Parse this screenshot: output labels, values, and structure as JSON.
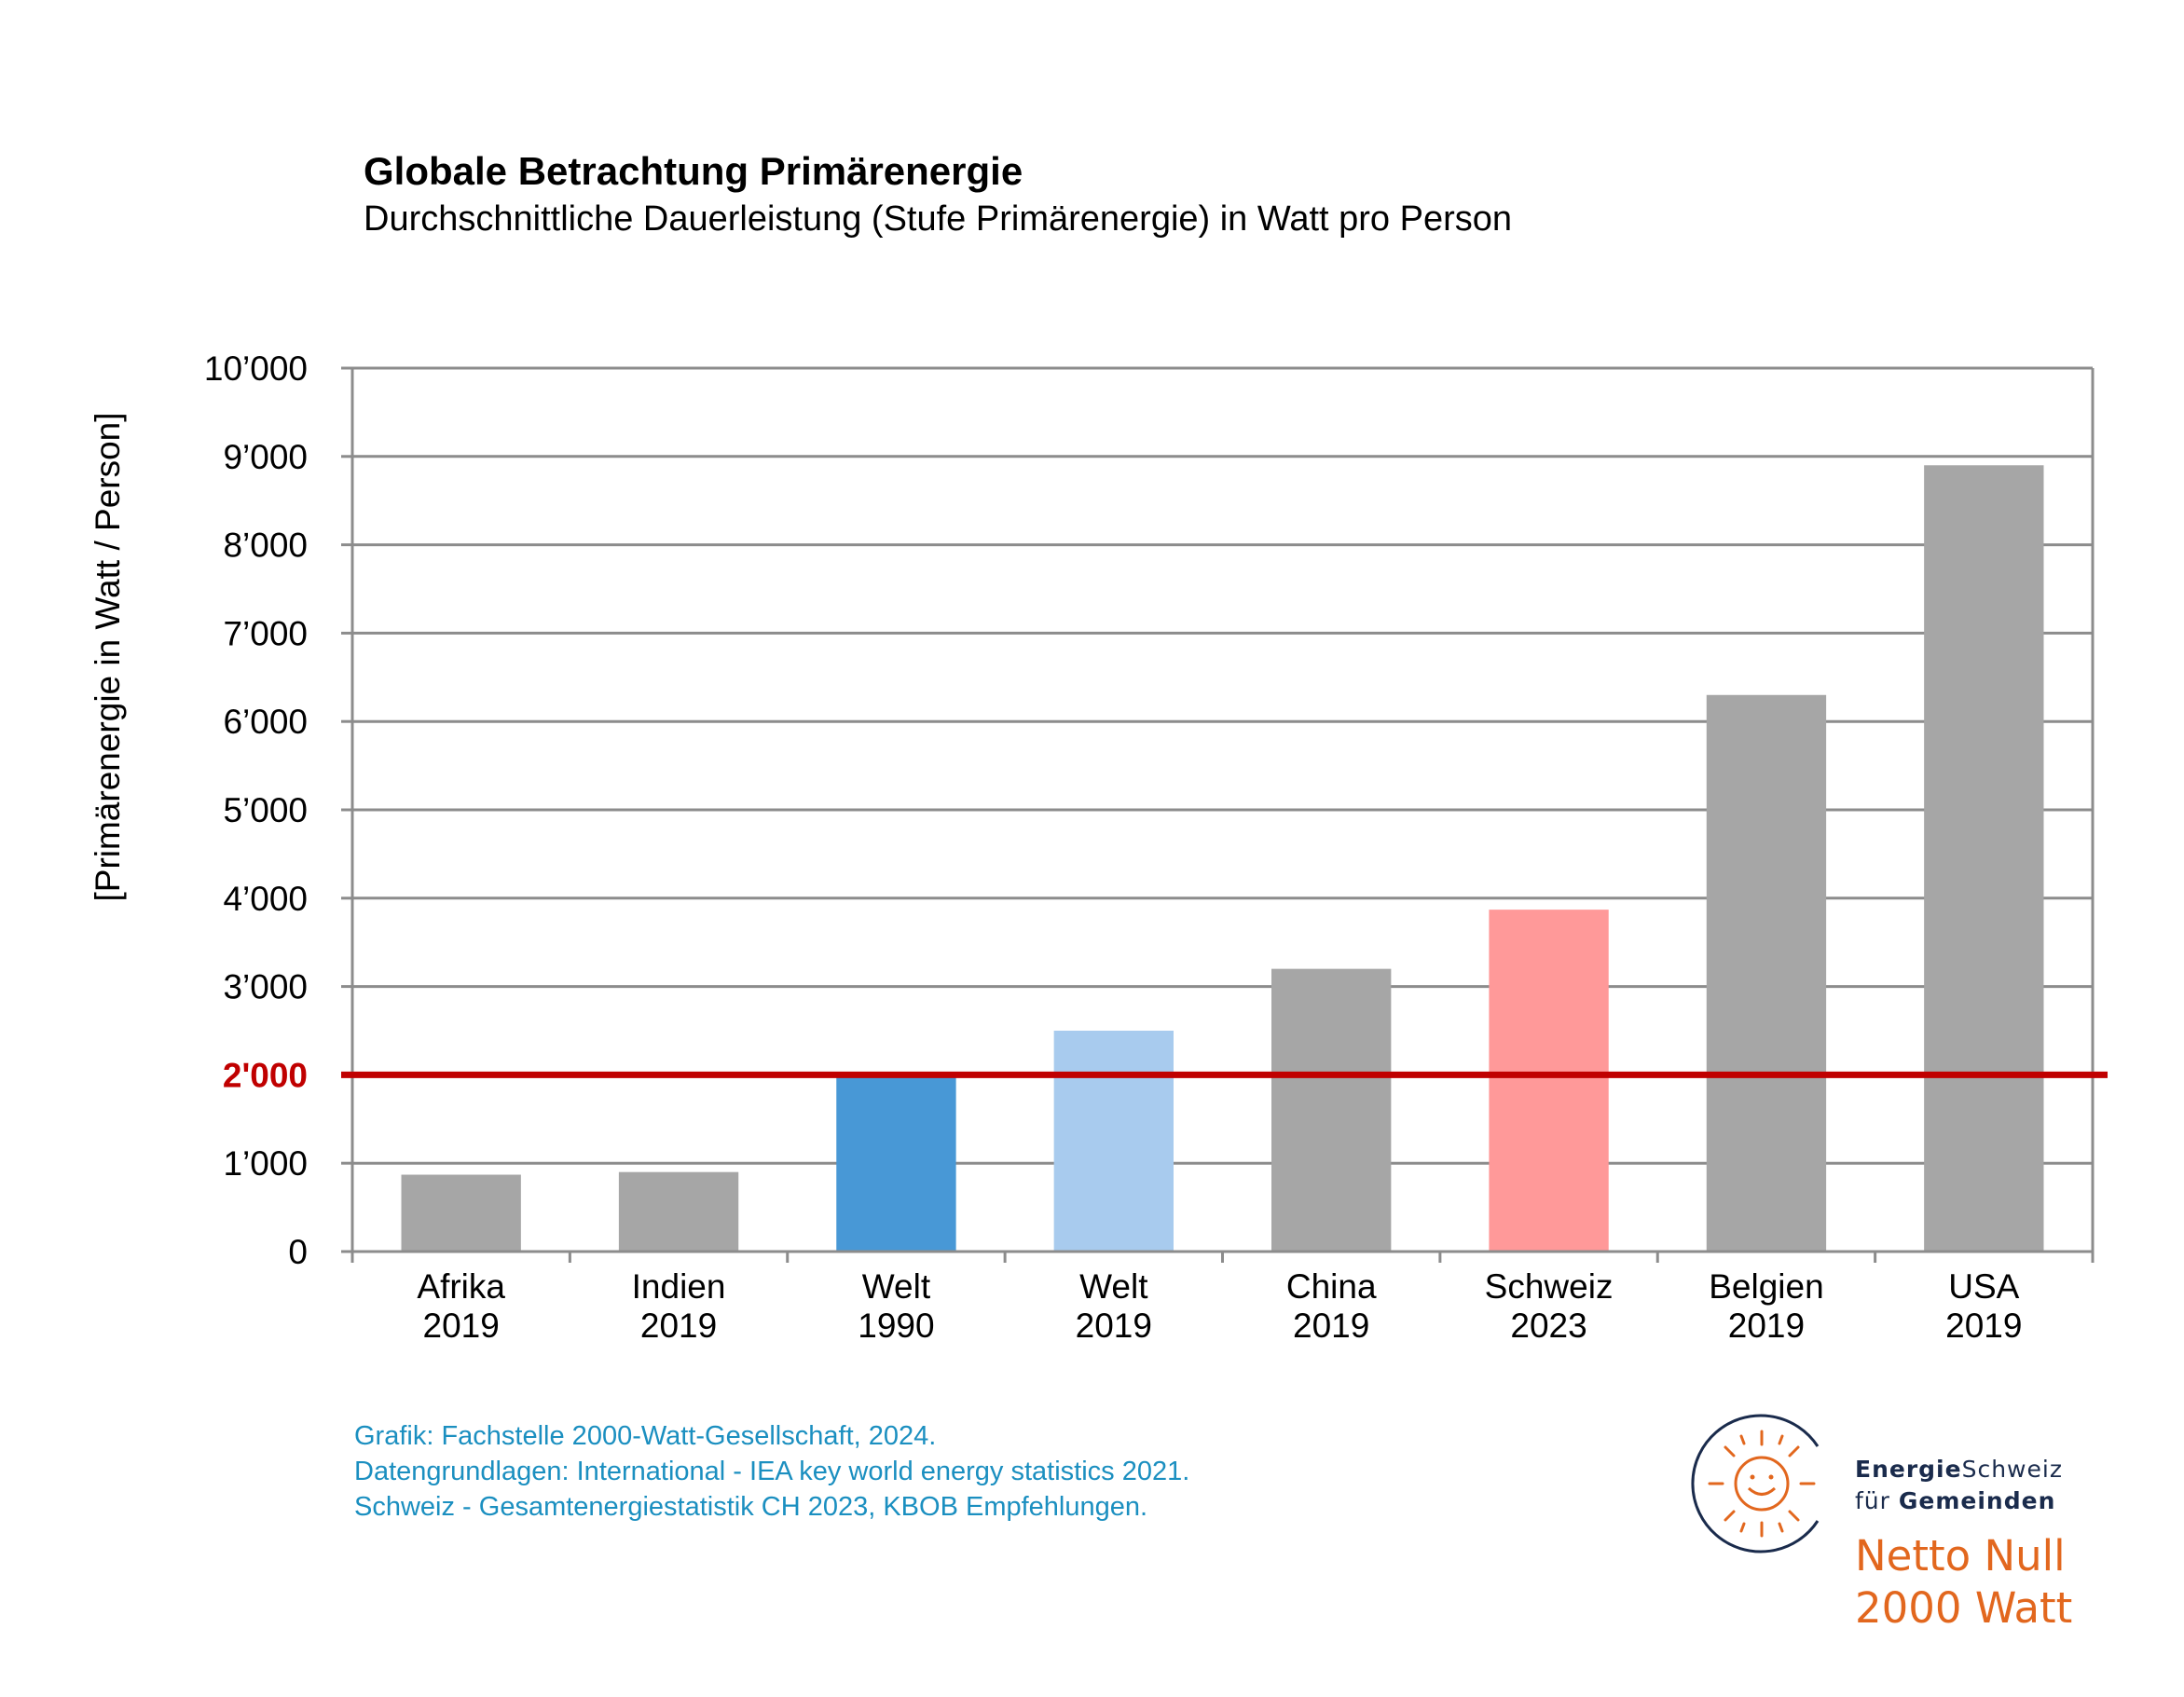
{
  "chart_data": {
    "type": "bar",
    "title": "Globale Betrachtung Primärenergie",
    "subtitle": "Durchschnittliche Dauerleistung (Stufe Primärenergie) in Watt pro Person",
    "ylabel": "[Primärenergie in Watt / Person]",
    "xlabel": "",
    "ylim": [
      0,
      10000
    ],
    "grid": true,
    "y_ticks": [
      {
        "value": 0,
        "label": "0"
      },
      {
        "value": 1000,
        "label": "1’000"
      },
      {
        "value": 2000,
        "label": "2'000"
      },
      {
        "value": 3000,
        "label": "3’000"
      },
      {
        "value": 4000,
        "label": "4’000"
      },
      {
        "value": 5000,
        "label": "5’000"
      },
      {
        "value": 6000,
        "label": "6’000"
      },
      {
        "value": 7000,
        "label": "7’000"
      },
      {
        "value": 8000,
        "label": "8’000"
      },
      {
        "value": 9000,
        "label": "9’000"
      },
      {
        "value": 10000,
        "label": "10’000"
      }
    ],
    "categories": [
      {
        "name": "Afrika",
        "year": "2019"
      },
      {
        "name": "Indien",
        "year": "2019"
      },
      {
        "name": "Welt",
        "year": "1990"
      },
      {
        "name": "Welt",
        "year": "2019"
      },
      {
        "name": "China",
        "year": "2019"
      },
      {
        "name": "Schweiz",
        "year": "2023"
      },
      {
        "name": "Belgien",
        "year": "2019"
      },
      {
        "name": "USA",
        "year": "2019"
      }
    ],
    "values": [
      870,
      900,
      2000,
      2500,
      3200,
      3870,
      6300,
      8900
    ],
    "bar_colors": [
      "#a6a6a6",
      "#a6a6a6",
      "#4898d6",
      "#a8cbee",
      "#a6a6a6",
      "#ff9999",
      "#a6a6a6",
      "#a6a6a6"
    ],
    "reference_line": {
      "value": 2000,
      "color": "#c00000"
    },
    "colors": {
      "grid": "#8c8c8c",
      "axis": "#8c8c8c",
      "reference_label": "#c00000"
    }
  },
  "sources": [
    "Grafik: Fachstelle 2000-Watt-Gesellschaft, 2024.",
    "Datengrundlagen:  International  - IEA key world energy statistics 2021.",
    "Schweiz - Gesamtenergiestatistik  CH 2023, KBOB Empfehlungen."
  ],
  "logo": {
    "line1_bold": "Energie",
    "line1_rest": "Schweiz",
    "line2_rest": "für ",
    "line2_bold": "Gemeinden",
    "line3": "Netto Null",
    "line4": "2000 Watt",
    "icon": "sun-smile-icon",
    "colors": {
      "orange": "#e2671e",
      "navy": "#1a2b4c"
    }
  }
}
